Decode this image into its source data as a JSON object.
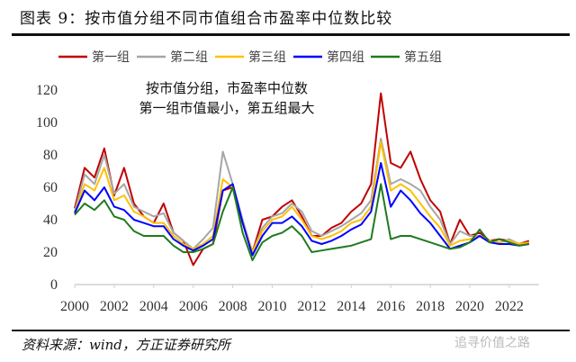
{
  "title": "图表 9：按市值分组不同市值组合市盈率中位数比较",
  "source": "资料来源：wind，方正证券研究所",
  "watermark": "追寻价值之路",
  "chart_data": {
    "type": "line",
    "title": "",
    "xlabel": "",
    "ylabel": "",
    "annotation": [
      "按市值分组，市盈率中位数",
      "第一组市值最小，第五组最大"
    ],
    "ylim": [
      0,
      120
    ],
    "xlim": [
      2000,
      2023.5
    ],
    "y_ticks": [
      0,
      20,
      40,
      60,
      80,
      100,
      120
    ],
    "x_ticks": [
      2000,
      2002,
      2004,
      2006,
      2008,
      2010,
      2012,
      2014,
      2016,
      2018,
      2020,
      2022
    ],
    "grid": false,
    "legend_position": "top",
    "x": [
      2000,
      2000.5,
      2001,
      2001.5,
      2002,
      2002.5,
      2003,
      2003.5,
      2004,
      2004.5,
      2005,
      2005.5,
      2006,
      2006.5,
      2007,
      2007.5,
      2008,
      2008.5,
      2009,
      2009.5,
      2010,
      2010.5,
      2011,
      2011.5,
      2012,
      2012.5,
      2013,
      2013.5,
      2014,
      2014.5,
      2015,
      2015.5,
      2016,
      2016.5,
      2017,
      2017.5,
      2018,
      2018.5,
      2019,
      2019.5,
      2020,
      2020.5,
      2021,
      2021.5,
      2022,
      2022.5,
      2023
    ],
    "series": [
      {
        "name": "第一组",
        "color": "#c00000",
        "values": [
          47,
          72,
          66,
          84,
          55,
          72,
          50,
          42,
          38,
          50,
          32,
          27,
          12,
          22,
          25,
          58,
          60,
          38,
          20,
          40,
          42,
          48,
          52,
          42,
          30,
          30,
          35,
          38,
          45,
          50,
          62,
          118,
          75,
          72,
          82,
          65,
          52,
          45,
          25,
          40,
          30,
          32,
          27,
          28,
          27,
          25,
          27
        ]
      },
      {
        "name": "第二组",
        "color": "#a6a6a6",
        "values": [
          45,
          68,
          62,
          80,
          56,
          62,
          48,
          45,
          42,
          44,
          32,
          27,
          22,
          28,
          35,
          82,
          62,
          40,
          20,
          35,
          42,
          44,
          50,
          45,
          33,
          30,
          33,
          36,
          40,
          44,
          52,
          90,
          62,
          65,
          62,
          58,
          48,
          40,
          25,
          33,
          30,
          30,
          27,
          26,
          28,
          25,
          26
        ]
      },
      {
        "name": "第三组",
        "color": "#ffc000",
        "values": [
          44,
          62,
          58,
          72,
          52,
          55,
          45,
          42,
          38,
          38,
          30,
          25,
          22,
          25,
          30,
          65,
          60,
          38,
          20,
          33,
          40,
          42,
          48,
          40,
          30,
          28,
          30,
          33,
          38,
          40,
          48,
          88,
          58,
          62,
          58,
          50,
          42,
          35,
          24,
          27,
          28,
          30,
          27,
          26,
          27,
          25,
          26
        ]
      },
      {
        "name": "第四组",
        "color": "#0000ff",
        "values": [
          44,
          58,
          52,
          60,
          48,
          46,
          40,
          38,
          36,
          36,
          28,
          24,
          21,
          24,
          28,
          58,
          62,
          38,
          18,
          30,
          38,
          38,
          42,
          36,
          27,
          25,
          27,
          30,
          34,
          37,
          45,
          75,
          48,
          58,
          52,
          44,
          38,
          30,
          22,
          24,
          26,
          30,
          26,
          25,
          25,
          24,
          25
        ]
      },
      {
        "name": "第五组",
        "color": "#1e7b1e",
        "values": [
          43,
          50,
          46,
          52,
          42,
          40,
          33,
          30,
          30,
          30,
          24,
          20,
          20,
          22,
          25,
          45,
          60,
          32,
          15,
          26,
          30,
          32,
          36,
          30,
          20,
          21,
          22,
          23,
          24,
          26,
          28,
          62,
          28,
          30,
          30,
          28,
          26,
          24,
          22,
          23,
          26,
          34,
          26,
          28,
          26,
          24,
          25
        ]
      }
    ]
  }
}
